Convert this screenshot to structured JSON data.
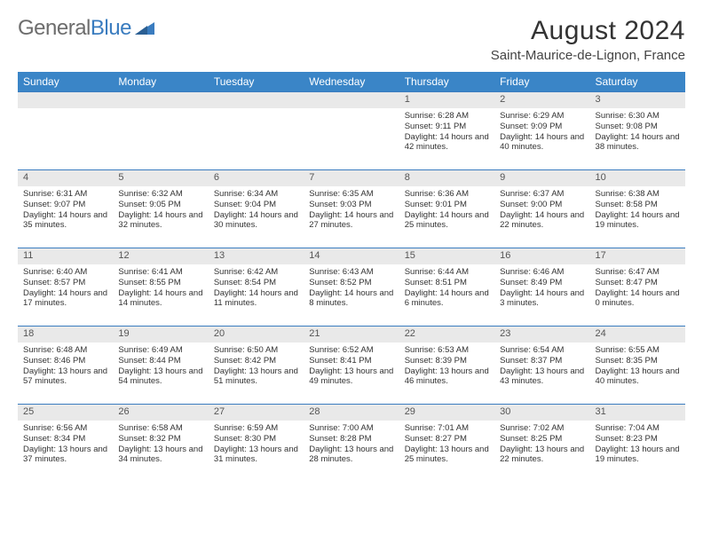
{
  "logo": {
    "part1": "General",
    "part2": "Blue"
  },
  "title": "August 2024",
  "location": "Saint-Maurice-de-Lignon, France",
  "headers": [
    "Sunday",
    "Monday",
    "Tuesday",
    "Wednesday",
    "Thursday",
    "Friday",
    "Saturday"
  ],
  "colors": {
    "header_bg": "#3a85c7",
    "header_text": "#ffffff",
    "rule": "#3a7cbf",
    "daynum_bg": "#e9e9e9",
    "logo_gray": "#6d6d6d",
    "logo_blue": "#3a7cbf"
  },
  "firstDayOffset": 4,
  "days": [
    {
      "n": "1",
      "sunrise": "6:28 AM",
      "sunset": "9:11 PM",
      "dl": "14 hours and 42 minutes."
    },
    {
      "n": "2",
      "sunrise": "6:29 AM",
      "sunset": "9:09 PM",
      "dl": "14 hours and 40 minutes."
    },
    {
      "n": "3",
      "sunrise": "6:30 AM",
      "sunset": "9:08 PM",
      "dl": "14 hours and 38 minutes."
    },
    {
      "n": "4",
      "sunrise": "6:31 AM",
      "sunset": "9:07 PM",
      "dl": "14 hours and 35 minutes."
    },
    {
      "n": "5",
      "sunrise": "6:32 AM",
      "sunset": "9:05 PM",
      "dl": "14 hours and 32 minutes."
    },
    {
      "n": "6",
      "sunrise": "6:34 AM",
      "sunset": "9:04 PM",
      "dl": "14 hours and 30 minutes."
    },
    {
      "n": "7",
      "sunrise": "6:35 AM",
      "sunset": "9:03 PM",
      "dl": "14 hours and 27 minutes."
    },
    {
      "n": "8",
      "sunrise": "6:36 AM",
      "sunset": "9:01 PM",
      "dl": "14 hours and 25 minutes."
    },
    {
      "n": "9",
      "sunrise": "6:37 AM",
      "sunset": "9:00 PM",
      "dl": "14 hours and 22 minutes."
    },
    {
      "n": "10",
      "sunrise": "6:38 AM",
      "sunset": "8:58 PM",
      "dl": "14 hours and 19 minutes."
    },
    {
      "n": "11",
      "sunrise": "6:40 AM",
      "sunset": "8:57 PM",
      "dl": "14 hours and 17 minutes."
    },
    {
      "n": "12",
      "sunrise": "6:41 AM",
      "sunset": "8:55 PM",
      "dl": "14 hours and 14 minutes."
    },
    {
      "n": "13",
      "sunrise": "6:42 AM",
      "sunset": "8:54 PM",
      "dl": "14 hours and 11 minutes."
    },
    {
      "n": "14",
      "sunrise": "6:43 AM",
      "sunset": "8:52 PM",
      "dl": "14 hours and 8 minutes."
    },
    {
      "n": "15",
      "sunrise": "6:44 AM",
      "sunset": "8:51 PM",
      "dl": "14 hours and 6 minutes."
    },
    {
      "n": "16",
      "sunrise": "6:46 AM",
      "sunset": "8:49 PM",
      "dl": "14 hours and 3 minutes."
    },
    {
      "n": "17",
      "sunrise": "6:47 AM",
      "sunset": "8:47 PM",
      "dl": "14 hours and 0 minutes."
    },
    {
      "n": "18",
      "sunrise": "6:48 AM",
      "sunset": "8:46 PM",
      "dl": "13 hours and 57 minutes."
    },
    {
      "n": "19",
      "sunrise": "6:49 AM",
      "sunset": "8:44 PM",
      "dl": "13 hours and 54 minutes."
    },
    {
      "n": "20",
      "sunrise": "6:50 AM",
      "sunset": "8:42 PM",
      "dl": "13 hours and 51 minutes."
    },
    {
      "n": "21",
      "sunrise": "6:52 AM",
      "sunset": "8:41 PM",
      "dl": "13 hours and 49 minutes."
    },
    {
      "n": "22",
      "sunrise": "6:53 AM",
      "sunset": "8:39 PM",
      "dl": "13 hours and 46 minutes."
    },
    {
      "n": "23",
      "sunrise": "6:54 AM",
      "sunset": "8:37 PM",
      "dl": "13 hours and 43 minutes."
    },
    {
      "n": "24",
      "sunrise": "6:55 AM",
      "sunset": "8:35 PM",
      "dl": "13 hours and 40 minutes."
    },
    {
      "n": "25",
      "sunrise": "6:56 AM",
      "sunset": "8:34 PM",
      "dl": "13 hours and 37 minutes."
    },
    {
      "n": "26",
      "sunrise": "6:58 AM",
      "sunset": "8:32 PM",
      "dl": "13 hours and 34 minutes."
    },
    {
      "n": "27",
      "sunrise": "6:59 AM",
      "sunset": "8:30 PM",
      "dl": "13 hours and 31 minutes."
    },
    {
      "n": "28",
      "sunrise": "7:00 AM",
      "sunset": "8:28 PM",
      "dl": "13 hours and 28 minutes."
    },
    {
      "n": "29",
      "sunrise": "7:01 AM",
      "sunset": "8:27 PM",
      "dl": "13 hours and 25 minutes."
    },
    {
      "n": "30",
      "sunrise": "7:02 AM",
      "sunset": "8:25 PM",
      "dl": "13 hours and 22 minutes."
    },
    {
      "n": "31",
      "sunrise": "7:04 AM",
      "sunset": "8:23 PM",
      "dl": "13 hours and 19 minutes."
    }
  ],
  "labels": {
    "sunrise": "Sunrise: ",
    "sunset": "Sunset: ",
    "daylight": "Daylight: "
  }
}
